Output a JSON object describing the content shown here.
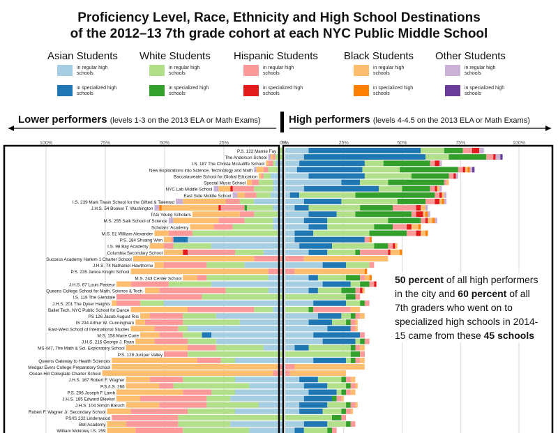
{
  "title_line1": "Proficiency Level, Race, Ethnicity and High School Destinations",
  "title_line2": "of the 2012–13 7th grade cohort at each NYC Public Middle School",
  "legend": [
    {
      "name": "Asian Students",
      "regular_label": "in regular high schools",
      "special_label": "in specialized high schools",
      "regular_color": "#a6cee3",
      "special_color": "#1f78b4"
    },
    {
      "name": "White Students",
      "regular_label": "in regular high schools",
      "special_label": "in specialized high schools",
      "regular_color": "#b2df8a",
      "special_color": "#33a02c"
    },
    {
      "name": "Hispanic Students",
      "regular_label": "in regular high schools",
      "special_label": "in specialized high schools",
      "regular_color": "#fb9a99",
      "special_color": "#e31a1c"
    },
    {
      "name": "Black Students",
      "regular_label": "in regular high schools",
      "special_label": "in specialized high schools",
      "regular_color": "#fdbf6f",
      "special_color": "#ff7f00"
    },
    {
      "name": "Other Students",
      "regular_label": "in regular high schools",
      "special_label": "in specialized high schools",
      "regular_color": "#cab2d6",
      "special_color": "#6a3d9a"
    }
  ],
  "left_header": {
    "bold": "Lower performers",
    "sub": "(levels 1-3 on the 2013 ELA or Math Exams)"
  },
  "right_header": {
    "bold": "High performers",
    "sub": "(levels 4-4.5 on the 2013 ELA or Math Exams)"
  },
  "callout": {
    "b1": "50 percent",
    "t1": " of all high performers in the city and ",
    "b2": "60 percent",
    "t2": " of all 7th graders who went on to specialized high schools in 2014-15 came from these ",
    "b3": "45 schools"
  },
  "chart_data": {
    "type": "bar",
    "orientation": "horizontal-diverging",
    "left_axis": {
      "ticks": [
        "100%",
        "75%",
        "50%",
        "25%",
        "0%"
      ],
      "range": [
        0,
        100
      ]
    },
    "right_axis": {
      "ticks": [
        "0%",
        "25%",
        "50%",
        "75%",
        "100%"
      ],
      "range": [
        0,
        100
      ]
    },
    "segment_order": [
      "Asian regular",
      "Asian specialized",
      "White regular",
      "White specialized",
      "Hispanic regular",
      "Hispanic specialized",
      "Black regular",
      "Black specialized",
      "Other regular",
      "Other specialized"
    ],
    "schools": [
      {
        "name": "P.S. 122 Mamie Fay",
        "left": [
          0,
          0,
          2,
          0,
          0,
          0,
          0,
          0,
          0,
          0
        ],
        "right": [
          10,
          48,
          10,
          8,
          4,
          3,
          0,
          0,
          2,
          0
        ]
      },
      {
        "name": "The Anderson School",
        "left": [
          0,
          0,
          3,
          0,
          1,
          0,
          1,
          0,
          1,
          0
        ],
        "right": [
          8,
          52,
          10,
          16,
          3,
          1,
          0,
          0,
          2,
          1
        ]
      },
      {
        "name": "I.S. 187 The Christa McAuliffe School",
        "left": [
          3,
          0,
          1,
          0,
          2,
          0,
          1,
          0,
          0,
          0
        ],
        "right": [
          6,
          28,
          8,
          20,
          2,
          2,
          0,
          0,
          1,
          0
        ]
      },
      {
        "name": "New Explorations into Science, Technology and Math",
        "left": [
          2,
          0,
          4,
          0,
          2,
          0,
          3,
          0,
          1,
          0
        ],
        "right": [
          5,
          28,
          16,
          25,
          2,
          1,
          1,
          1,
          1,
          1
        ]
      },
      {
        "name": "Baccalaureate School for Global Education",
        "left": [
          5,
          0,
          3,
          0,
          1,
          0,
          1,
          0,
          0,
          0
        ],
        "right": [
          10,
          24,
          20,
          16,
          2,
          1,
          0,
          0,
          1,
          0
        ]
      },
      {
        "name": "Special Music School",
        "left": [
          4,
          0,
          6,
          0,
          3,
          0,
          2,
          0,
          0,
          0
        ],
        "right": [
          24,
          8,
          12,
          24,
          1,
          0,
          1,
          0,
          0,
          0
        ]
      },
      {
        "name": "NYC Lab Middle School",
        "left": [
          4,
          0,
          8,
          0,
          9,
          1,
          5,
          0,
          2,
          0
        ],
        "right": [
          8,
          32,
          10,
          12,
          2,
          1,
          1,
          0,
          1,
          0
        ]
      },
      {
        "name": "East Side Middle School",
        "left": [
          5,
          0,
          6,
          0,
          5,
          0,
          3,
          0,
          2,
          0
        ],
        "right": [
          2,
          4,
          24,
          34,
          2,
          1,
          1,
          0,
          1,
          0
        ]
      },
      {
        "name": "I.S. 239 Mark Twain School for the Gifted & Talented",
        "left": [
          12,
          0,
          6,
          0,
          6,
          0,
          18,
          0,
          3,
          0
        ],
        "right": [
          8,
          16,
          24,
          12,
          4,
          2,
          1,
          1,
          1,
          0
        ]
      },
      {
        "name": "J.H.S. 54 Booker T. Washington",
        "left": [
          4,
          0,
          11,
          1,
          10,
          1,
          24,
          1,
          2,
          0
        ],
        "right": [
          4,
          6,
          22,
          14,
          10,
          2,
          2,
          0,
          1,
          0
        ]
      },
      {
        "name": "TAG Young Scholars",
        "left": [
          2,
          0,
          10,
          0,
          6,
          0,
          20,
          0,
          0,
          0
        ],
        "right": [
          10,
          12,
          8,
          24,
          2,
          3,
          1,
          1,
          1,
          0
        ]
      },
      {
        "name": "M.S. 255 Salk School of Science",
        "left": [
          4,
          0,
          12,
          0,
          11,
          0,
          19,
          0,
          2,
          0
        ],
        "right": [
          8,
          10,
          26,
          14,
          2,
          1,
          2,
          1,
          1,
          0
        ]
      },
      {
        "name": "Scholars' Academy",
        "left": [
          4,
          0,
          17,
          0,
          8,
          0,
          10,
          0,
          0,
          0
        ],
        "right": [
          10,
          8,
          20,
          8,
          6,
          2,
          3,
          1,
          0,
          0
        ]
      },
      {
        "name": "M.S. 51 William Alexander",
        "left": [
          2,
          0,
          36,
          0,
          10,
          0,
          6,
          0,
          0,
          0
        ],
        "right": [
          4,
          8,
          24,
          16,
          4,
          2,
          2,
          1,
          0,
          0
        ]
      },
      {
        "name": "P.S. 184 Shuang Wen",
        "left": [
          40,
          6,
          0,
          0,
          1,
          0,
          3,
          0,
          0,
          0
        ],
        "right": [
          4,
          30,
          0,
          0,
          2,
          0,
          0,
          1,
          0,
          0
        ]
      },
      {
        "name": "I.S. 98 Bay Academy",
        "left": [
          30,
          0,
          16,
          0,
          4,
          0,
          6,
          0,
          0,
          0
        ],
        "right": [
          6,
          14,
          18,
          6,
          2,
          1,
          1,
          0,
          0,
          0
        ]
      },
      {
        "name": "Columbia Secondary School",
        "left": [
          8,
          0,
          12,
          0,
          20,
          2,
          8,
          0,
          0,
          0
        ],
        "right": [
          10,
          8,
          12,
          2,
          12,
          1,
          4,
          1,
          0,
          0
        ]
      },
      {
        "name": "Success Academy Harlem 1 Charter School",
        "left": [
          0,
          0,
          0,
          0,
          12,
          0,
          51,
          0,
          0,
          0
        ],
        "right": [
          0,
          0,
          0,
          0,
          8,
          0,
          36,
          0,
          0,
          0
        ]
      },
      {
        "name": "J.H.S. 74 Nathaniel Hawthorne",
        "left": [
          16,
          0,
          16,
          0,
          18,
          0,
          4,
          0,
          0,
          0
        ],
        "right": [
          16,
          10,
          10,
          0,
          2,
          0,
          0,
          0,
          0,
          0
        ]
      },
      {
        "name": "P.S. 235 Janice Knight School",
        "left": [
          0,
          0,
          0,
          0,
          6,
          0,
          58,
          0,
          0,
          0
        ],
        "right": [
          0,
          0,
          0,
          0,
          4,
          0,
          30,
          1,
          0,
          0
        ]
      },
      {
        "name": "M.S. 243 Center School",
        "left": [
          6,
          0,
          26,
          0,
          4,
          0,
          6,
          0,
          0,
          0
        ],
        "right": [
          10,
          4,
          12,
          6,
          2,
          0,
          2,
          1,
          0,
          0
        ]
      },
      {
        "name": "J.H.S. 67 Louis Pasteur",
        "left": [
          30,
          0,
          18,
          0,
          16,
          0,
          6,
          0,
          0,
          0
        ],
        "right": [
          16,
          12,
          4,
          4,
          2,
          1,
          0,
          0,
          0,
          0
        ]
      },
      {
        "name": "Queens College School for Math, Science & Tech.",
        "left": [
          6,
          0,
          18,
          0,
          28,
          0,
          6,
          0,
          0,
          0
        ],
        "right": [
          10,
          4,
          10,
          6,
          2,
          1,
          1,
          0,
          0,
          0
        ]
      },
      {
        "name": "I.S. 119 The Glendale",
        "left": [
          0,
          0,
          34,
          0,
          36,
          0,
          0,
          0,
          0,
          0
        ],
        "right": [
          0,
          0,
          26,
          4,
          2,
          0,
          0,
          0,
          0,
          0
        ]
      },
      {
        "name": "J.H.S. 201 The Dyker Heights",
        "left": [
          50,
          0,
          10,
          0,
          10,
          0,
          2,
          0,
          0,
          0
        ],
        "right": [
          12,
          14,
          6,
          2,
          2,
          0,
          0,
          0,
          0,
          0
        ]
      },
      {
        "name": "Ballet Tech, NYC Public School for Dance",
        "left": [
          4,
          0,
          8,
          0,
          28,
          0,
          24,
          0,
          0,
          0
        ],
        "right": [
          0,
          0,
          10,
          2,
          16,
          0,
          4,
          0,
          0,
          0
        ]
      },
      {
        "name": "PS 126 Jacob August Riis",
        "left": [
          28,
          0,
          14,
          0,
          14,
          0,
          4,
          0,
          0,
          0
        ],
        "right": [
          14,
          10,
          4,
          2,
          2,
          0,
          2,
          0,
          0,
          0
        ]
      },
      {
        "name": "IS 234 Arthur W. Cunningham",
        "left": [
          18,
          0,
          24,
          0,
          16,
          0,
          4,
          0,
          0,
          0
        ],
        "right": [
          10,
          10,
          6,
          2,
          2,
          0,
          1,
          0,
          0,
          0
        ]
      },
      {
        "name": "East-West School of International Studies",
        "left": [
          40,
          0,
          4,
          0,
          10,
          0,
          10,
          0,
          0,
          0
        ],
        "right": [
          18,
          10,
          0,
          0,
          2,
          0,
          1,
          0,
          0,
          0
        ]
      },
      {
        "name": "M.S. 158 Marie Curie",
        "left": [
          30,
          4,
          8,
          0,
          10,
          0,
          8,
          0,
          0,
          0
        ],
        "right": [
          12,
          20,
          0,
          0,
          2,
          0,
          0,
          0,
          0,
          0
        ]
      },
      {
        "name": "J.H.S. 216 George J. Ryan",
        "left": [
          28,
          0,
          12,
          0,
          14,
          0,
          8,
          0,
          0,
          0
        ],
        "right": [
          16,
          14,
          2,
          2,
          2,
          0,
          0,
          0,
          0,
          0
        ]
      },
      {
        "name": "MS 447, The Math & Sci. Exploratory School",
        "left": [
          8,
          0,
          20,
          0,
          12,
          0,
          26,
          0,
          0,
          0
        ],
        "right": [
          4,
          6,
          18,
          2,
          2,
          0,
          2,
          0,
          0,
          0
        ]
      },
      {
        "name": "P.S. 128 Juniper Valley",
        "left": [
          0,
          0,
          40,
          0,
          10,
          0,
          0,
          0,
          0,
          0
        ],
        "right": [
          0,
          0,
          28,
          4,
          2,
          0,
          0,
          0,
          0,
          0
        ]
      },
      {
        "name": "Queens Gateway to Health Sciences",
        "left": [
          20,
          0,
          6,
          0,
          10,
          0,
          36,
          0,
          0,
          0
        ],
        "right": [
          12,
          14,
          2,
          2,
          2,
          0,
          2,
          0,
          0,
          0
        ]
      },
      {
        "name": "Medgar Evers College Preparatory School",
        "left": [
          0,
          0,
          0,
          0,
          2,
          0,
          70,
          0,
          0,
          0
        ],
        "right": [
          0,
          0,
          0,
          0,
          4,
          0,
          30,
          0,
          0,
          0
        ]
      },
      {
        "name": "Ocean Hill Collegiate Charter School",
        "left": [
          0,
          0,
          0,
          0,
          4,
          0,
          72,
          0,
          0,
          0
        ],
        "right": [
          0,
          0,
          0,
          0,
          2,
          0,
          24,
          0,
          0,
          0
        ]
      },
      {
        "name": "J.H.S. 167 Robert F. Wagner",
        "left": [
          20,
          0,
          22,
          0,
          14,
          0,
          10,
          0,
          0,
          0
        ],
        "right": [
          6,
          8,
          10,
          2,
          2,
          0,
          2,
          0,
          0,
          0
        ]
      },
      {
        "name": "P.S./I.S. 266",
        "left": [
          14,
          0,
          32,
          0,
          6,
          0,
          14,
          0,
          0,
          0
        ],
        "right": [
          8,
          10,
          8,
          2,
          2,
          0,
          1,
          0,
          0,
          0
        ]
      },
      {
        "name": "P.S. 206 Joseph F Lamb",
        "left": [
          20,
          0,
          10,
          0,
          12,
          0,
          28,
          0,
          0,
          0
        ],
        "right": [
          10,
          12,
          2,
          2,
          2,
          0,
          2,
          0,
          0,
          0
        ]
      },
      {
        "name": "J.H.S. 185 Edward Bleeker",
        "left": [
          22,
          0,
          10,
          0,
          28,
          0,
          10,
          0,
          0,
          0
        ],
        "right": [
          8,
          12,
          0,
          2,
          2,
          0,
          1,
          0,
          0,
          0
        ]
      },
      {
        "name": "J.H.S. 104 Simon Baruch",
        "left": [
          10,
          0,
          22,
          0,
          20,
          0,
          14,
          0,
          0,
          0
        ],
        "right": [
          6,
          12,
          8,
          2,
          2,
          0,
          1,
          0,
          0,
          0
        ]
      },
      {
        "name": "Robert F. Wagner Jr. Secondary School",
        "left": [
          20,
          0,
          20,
          0,
          24,
          0,
          10,
          0,
          0,
          0
        ],
        "right": [
          6,
          10,
          8,
          2,
          2,
          0,
          1,
          0,
          0,
          0
        ]
      },
      {
        "name": "PS/IS 232 Lindenwood",
        "left": [
          0,
          0,
          44,
          0,
          28,
          0,
          0,
          0,
          0,
          0
        ],
        "right": [
          0,
          0,
          20,
          4,
          2,
          0,
          0,
          0,
          0,
          0
        ]
      },
      {
        "name": "Bell Academy",
        "left": [
          22,
          0,
          22,
          0,
          22,
          0,
          8,
          0,
          0,
          0
        ],
        "right": [
          8,
          10,
          8,
          2,
          2,
          0,
          0,
          0,
          0,
          0
        ]
      },
      {
        "name": "William Mckinley I.S. 259",
        "left": [
          14,
          0,
          28,
          0,
          20,
          0,
          12,
          0,
          0,
          0
        ],
        "right": [
          4,
          4,
          10,
          2,
          2,
          0,
          0,
          0,
          0,
          0
        ]
      }
    ]
  }
}
